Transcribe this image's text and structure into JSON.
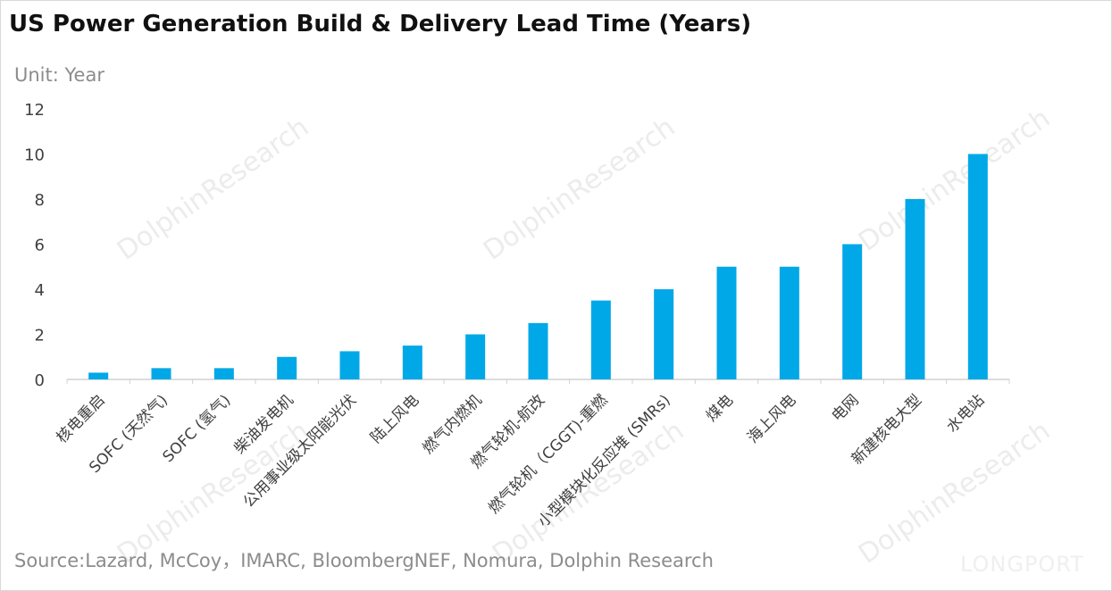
{
  "title": "US Power Generation Build & Delivery Lead Time (Years)",
  "unit_label": "Unit: Year",
  "source": "Source:Lazard, McCoy，IMARC, BloombergNEF, Nomura, Dolphin Research",
  "watermark": {
    "text": "DolphinResearch",
    "brand": "LONGPORT"
  },
  "colors": {
    "bar": "#00a8e8",
    "axis": "#d0d0d0",
    "tick_text": "#404040"
  },
  "chart_data": {
    "type": "bar",
    "title": "US Power Generation Build & Delivery Lead Time (Years)",
    "ylabel": "Unit: Year",
    "xlabel": "",
    "ylim": [
      0,
      12
    ],
    "yticks": [
      0,
      2,
      4,
      6,
      8,
      10,
      12
    ],
    "grid": false,
    "legend": "none",
    "categories": [
      "核电重启",
      "SOFC (天然气)",
      "SOFC (氢气)",
      "柴油发电机",
      "公用事业级太阳能光伏",
      "陆上风电",
      "燃气内燃机",
      "燃气轮机-航改",
      "燃气轮机（CGGT)-重燃",
      "小型模块化反应堆 (SMRs)",
      "煤电",
      "海上风电",
      "电网",
      "新建核电大型",
      "水电站"
    ],
    "values": [
      0.3,
      0.5,
      0.5,
      1,
      1.25,
      1.5,
      2,
      2.5,
      3.5,
      4,
      5,
      5,
      6,
      8,
      10
    ]
  }
}
